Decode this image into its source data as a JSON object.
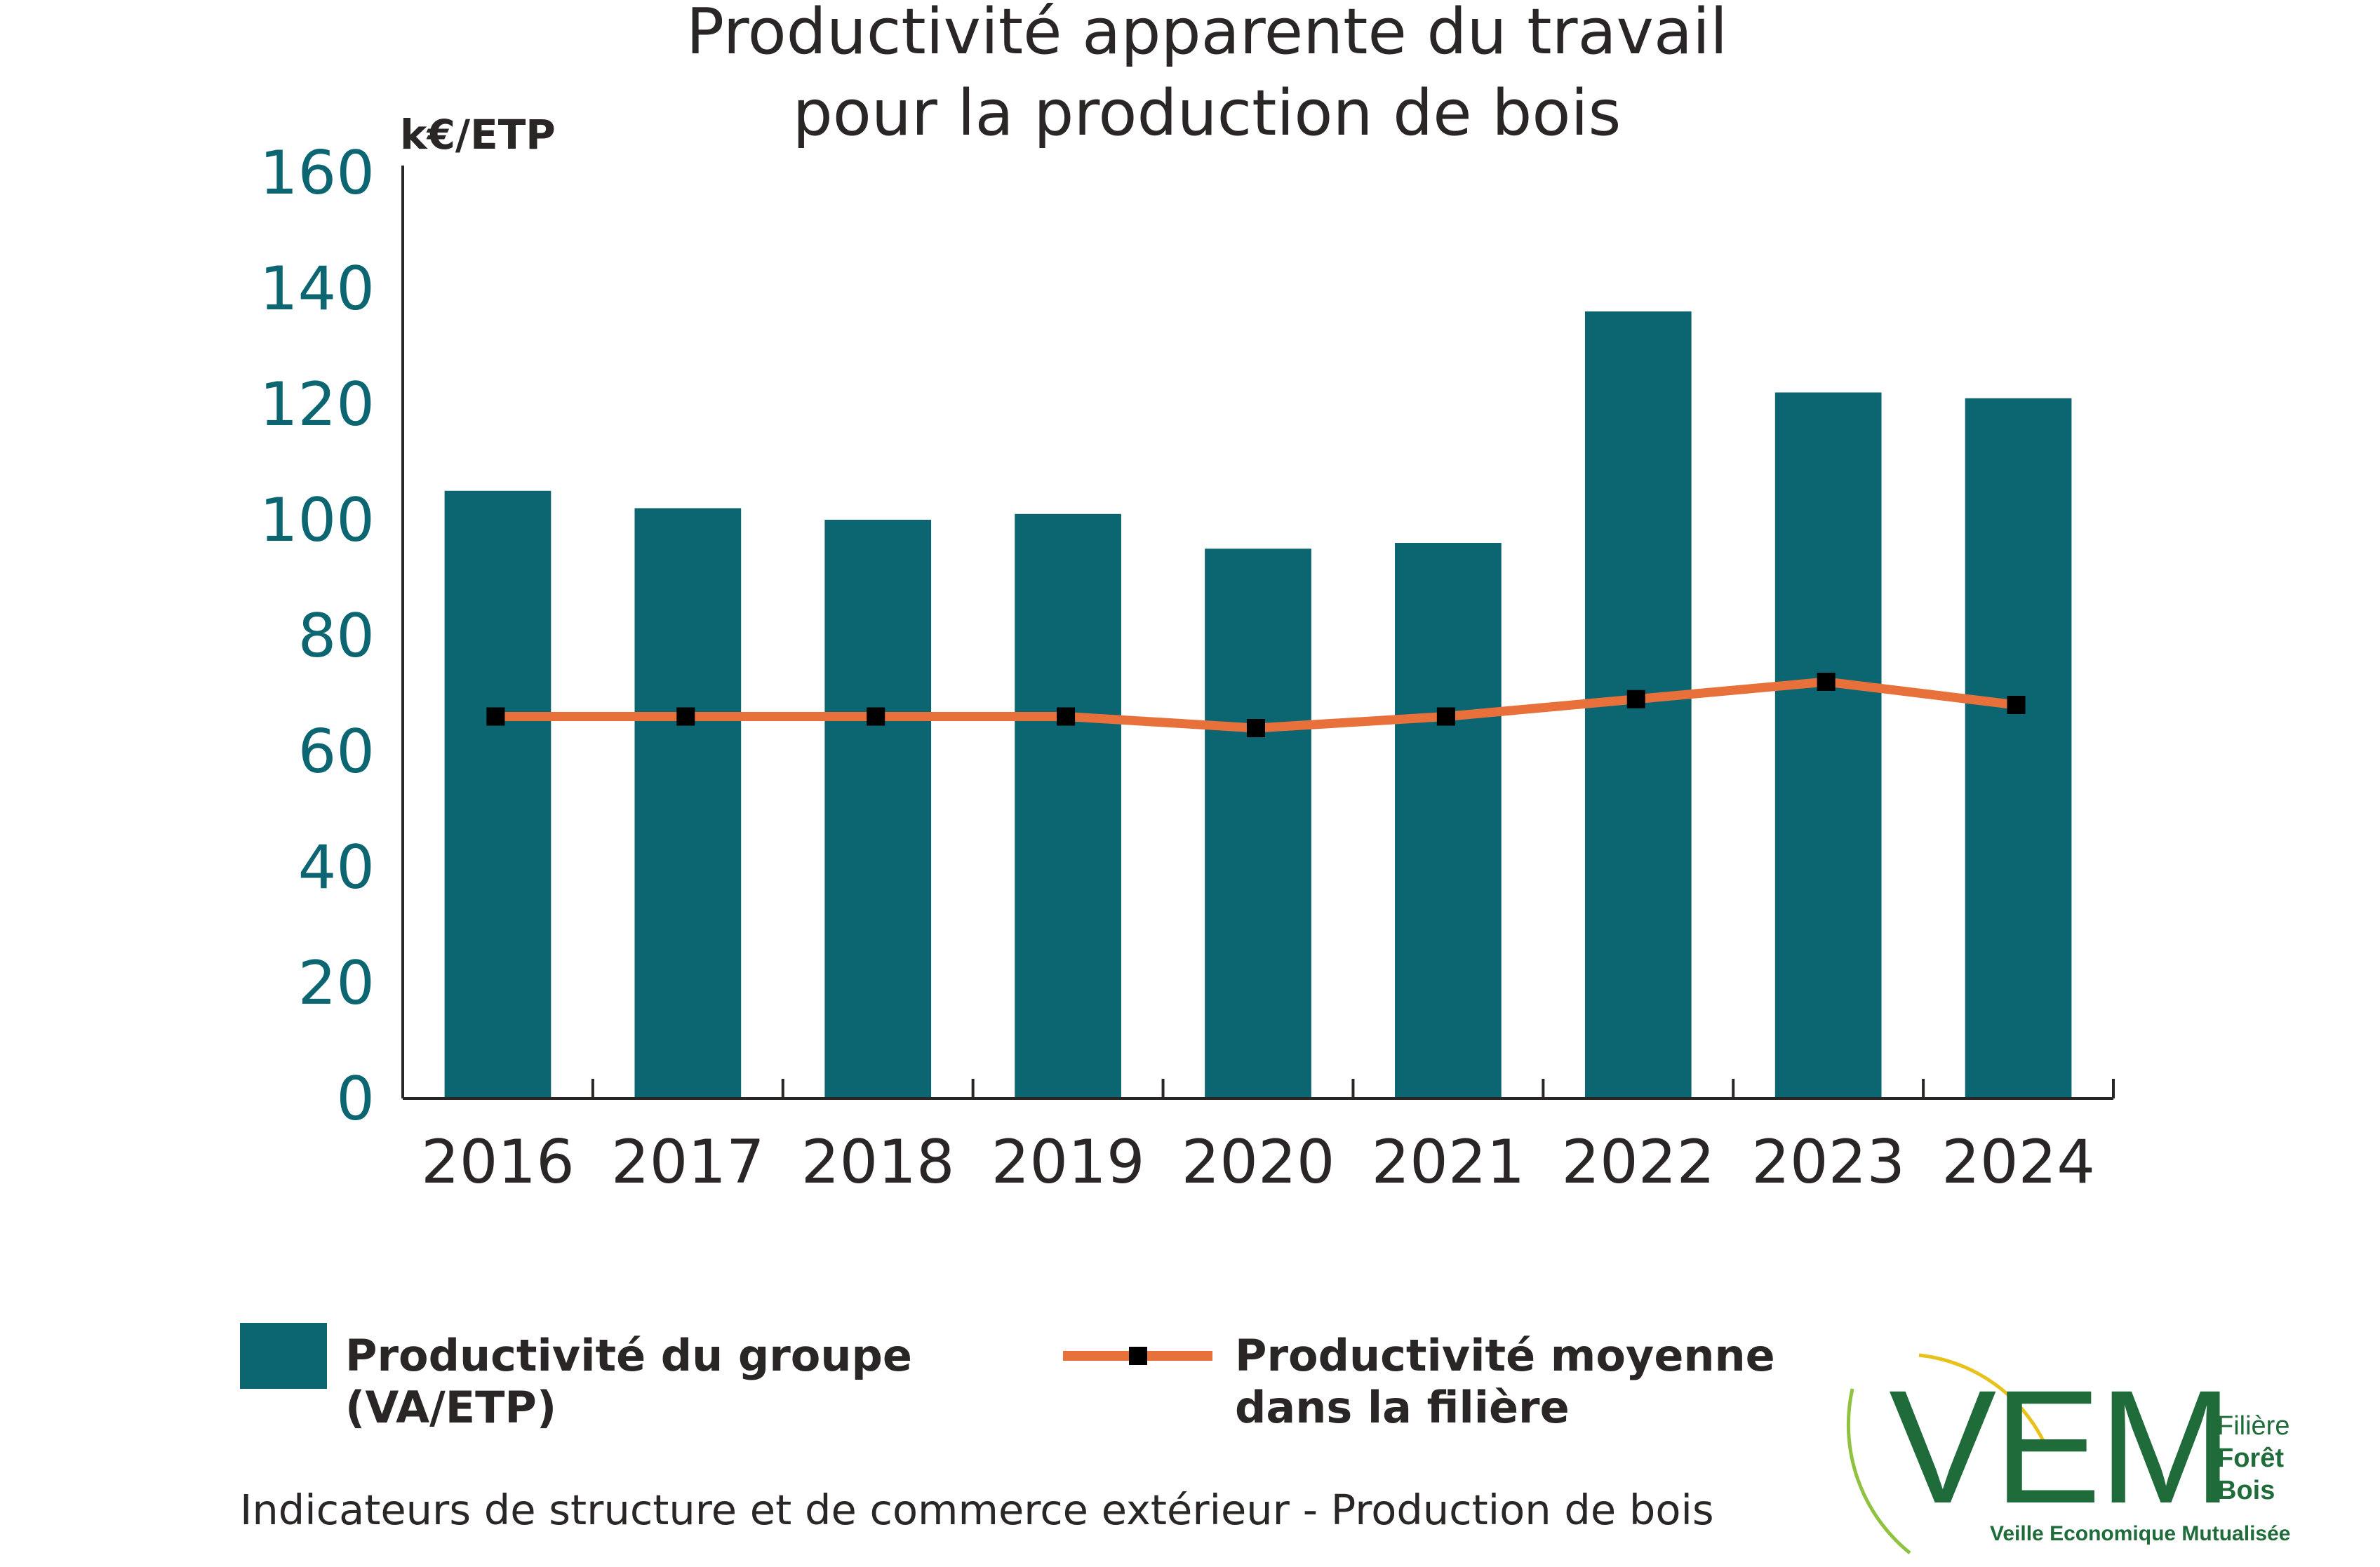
{
  "chart_data": {
    "type": "bar",
    "title_lines": [
      "Productivité apparente du travail",
      "pour la production de bois"
    ],
    "ylabel": "k€/ETP",
    "xlabel": "",
    "ylim": [
      0,
      160
    ],
    "yticks": [
      "0",
      "20",
      "40",
      "60",
      "80",
      "100",
      "120",
      "140",
      "160"
    ],
    "categories": [
      "2016",
      "2017",
      "2018",
      "2019",
      "2020",
      "2021",
      "2022",
      "2023",
      "2024"
    ],
    "series": [
      {
        "name": "Productivité du groupe (VA/ETP)",
        "type": "bar",
        "color": "#0b6672",
        "values": [
          105,
          102,
          100,
          101,
          95,
          96,
          136,
          122,
          121
        ]
      },
      {
        "name": "Productivité moyenne dans la filière",
        "type": "line",
        "color": "#e8703a",
        "marker_color": "#000000",
        "values": [
          66,
          66,
          66,
          66,
          64,
          66,
          69,
          72,
          68
        ]
      }
    ],
    "grid": false,
    "legend_position": "bottom"
  },
  "legend": {
    "bar_label_line1": "Productivité du groupe",
    "bar_label_line2": "(VA/ETP)",
    "line_label_line1": "Productivité moyenne",
    "line_label_line2": "dans la filière"
  },
  "footer": {
    "source": "Indicateurs de structure et de commerce extérieur - Production de bois"
  },
  "logo": {
    "letters": "VEM",
    "line1": "Filière",
    "line2": "Forêt",
    "line3": "Bois",
    "tagline": "Veille Economique Mutualisée",
    "color": "#1f6b3a",
    "accent": "#e8c21a"
  }
}
